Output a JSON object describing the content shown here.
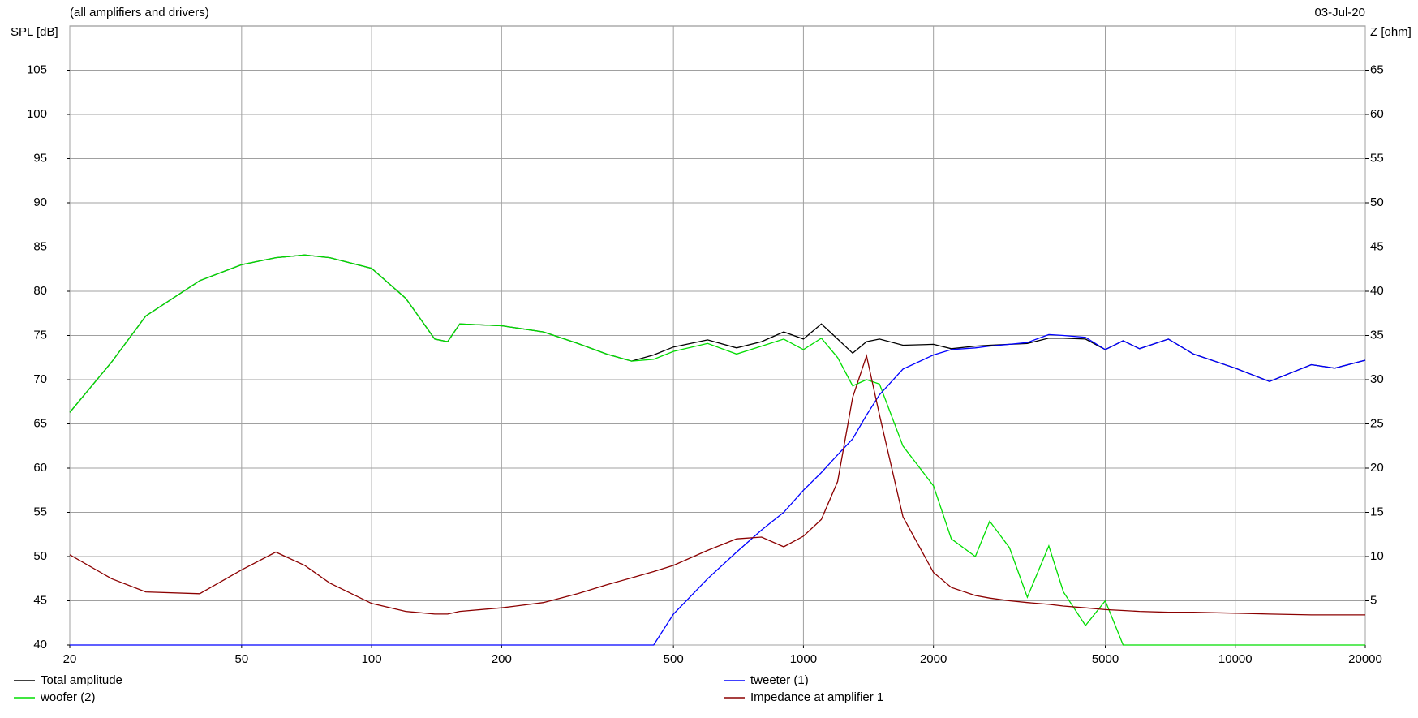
{
  "chart_data": {
    "type": "line",
    "subtitle": "(all amplifiers and drivers)",
    "date": "03-Jul-20",
    "y_label": "SPL [dB]",
    "y2_label": "Z [ohm]",
    "xlog": true,
    "grid": true,
    "legend": "bottom",
    "xlim": [
      20,
      20000
    ],
    "xticks": [
      20,
      50,
      100,
      200,
      500,
      1000,
      2000,
      5000,
      10000,
      20000
    ],
    "ylim": [
      40,
      110
    ],
    "yticks": [
      40,
      45,
      50,
      55,
      60,
      65,
      70,
      75,
      80,
      85,
      90,
      95,
      100,
      105
    ],
    "y2lim": [
      0,
      70
    ],
    "y2ticks": [
      5,
      10,
      15,
      20,
      25,
      30,
      35,
      40,
      45,
      50,
      55,
      60,
      65
    ],
    "x": [
      20,
      25,
      30,
      40,
      50,
      60,
      70,
      80,
      100,
      120,
      140,
      150,
      160,
      200,
      250,
      300,
      350,
      400,
      450,
      500,
      600,
      700,
      800,
      900,
      1000,
      1100,
      1200,
      1300,
      1400,
      1500,
      1700,
      2000,
      2200,
      2500,
      2700,
      3000,
      3300,
      3700,
      4000,
      4500,
      5000,
      5500,
      6000,
      7000,
      8000,
      10000,
      12000,
      15000,
      17000,
      20000
    ],
    "series": [
      {
        "name": "Total amplitude",
        "color": "#000000",
        "values": [
          66.3,
          72,
          77.2,
          81.2,
          83,
          83.8,
          84.1,
          83.8,
          82.6,
          79.2,
          74.6,
          74.3,
          76.3,
          76.1,
          75.4,
          74.1,
          72.9,
          72.1,
          72.8,
          73.7,
          74.5,
          73.6,
          74.3,
          75.4,
          74.6,
          76.3,
          74.6,
          73,
          74.3,
          74.6,
          73.9,
          74,
          73.5,
          73.8,
          73.9,
          74,
          74.1,
          74.7,
          74.7,
          74.6,
          73.4,
          74.4,
          73.5,
          74.6,
          72.9,
          71.3,
          69.8,
          71.7,
          71.3,
          72.2
        ]
      },
      {
        "name": "tweeter (1)",
        "color": "#0000ff",
        "values": [
          40,
          40,
          40,
          40,
          40,
          40,
          40,
          40,
          40,
          40,
          40,
          40,
          40,
          40,
          40,
          40,
          40,
          40,
          40,
          43.5,
          47.5,
          50.5,
          53,
          55,
          57.5,
          59.5,
          61.5,
          63.3,
          66,
          68.3,
          71.2,
          72.8,
          73.4,
          73.6,
          73.8,
          74,
          74.2,
          75.1,
          75,
          74.8,
          73.4,
          74.4,
          73.5,
          74.6,
          72.9,
          71.3,
          69.8,
          71.7,
          71.3,
          72.2
        ]
      },
      {
        "name": "woofer (2)",
        "color": "#00dd00",
        "values": [
          66.3,
          72,
          77.2,
          81.2,
          83,
          83.8,
          84.1,
          83.8,
          82.6,
          79.2,
          74.6,
          74.3,
          76.3,
          76.1,
          75.4,
          74.1,
          72.9,
          72.1,
          72.3,
          73.2,
          74.1,
          72.9,
          73.8,
          74.6,
          73.4,
          74.7,
          72.5,
          69.3,
          70,
          69.5,
          62.5,
          58,
          52,
          50,
          54,
          51,
          45.4,
          51.2,
          46,
          42.2,
          45,
          40,
          40,
          40,
          40,
          40,
          40,
          40,
          40,
          40
        ]
      },
      {
        "name": "Impedance at amplifier 1",
        "color": "#8b0000",
        "axis": "y2",
        "values": [
          10.2,
          7.5,
          6,
          5.8,
          8.5,
          10.5,
          9,
          7,
          4.7,
          3.8,
          3.5,
          3.5,
          3.8,
          4.2,
          4.8,
          5.8,
          6.8,
          7.6,
          8.3,
          9,
          10.7,
          12,
          12.2,
          11.1,
          12.3,
          14.2,
          18.5,
          28,
          32.7,
          26,
          14.5,
          8.2,
          6.5,
          5.6,
          5.3,
          5,
          4.8,
          4.6,
          4.4,
          4.2,
          4,
          3.9,
          3.8,
          3.7,
          3.7,
          3.6,
          3.5,
          3.4,
          3.4,
          3.4
        ]
      }
    ]
  }
}
